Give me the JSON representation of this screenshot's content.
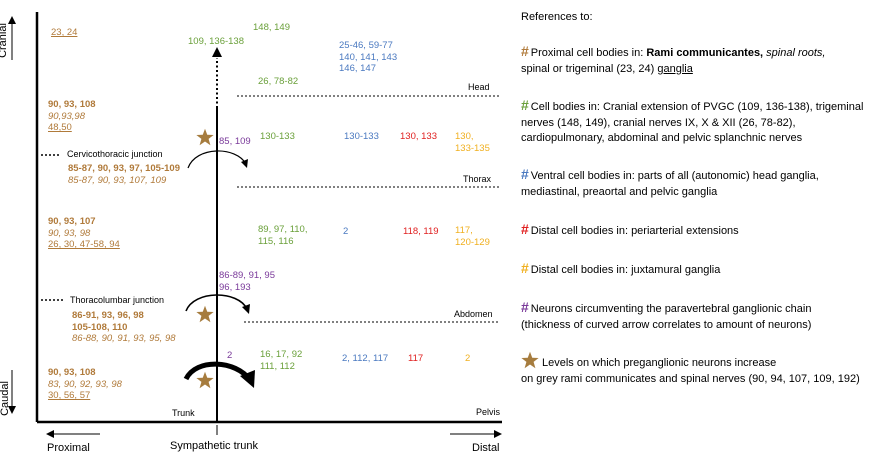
{
  "colors": {
    "brown": "#b07a3a",
    "green": "#6aa03a",
    "blue": "#4a79c0",
    "red": "#e02020",
    "yellow": "#f0b020",
    "purple": "#7a3a9a",
    "star": "#a67c3e"
  },
  "axes": {
    "cranial": "Cranial",
    "caudal": "Caudal",
    "proximal": "Proximal",
    "distal": "Distal",
    "sympathetic_trunk": "Sympathetic trunk"
  },
  "regions": {
    "head": "Head",
    "thorax": "Thorax",
    "abdomen": "Abdomen",
    "pelvis": "Pelvis",
    "trunk": "Trunk"
  },
  "junctions": {
    "cervicothoracic": "Cervicothoracic junction",
    "thoracolumbar": "Thoracolumbar junction"
  },
  "diagram": {
    "top_brown": "23, 24",
    "top_green_1": "148, 149",
    "top_green_2": "109, 136-138",
    "head_blue": [
      "25-46, 59-77",
      "140, 141, 143",
      "146, 147"
    ],
    "head_green": "26, 78-82",
    "cervical_brown": [
      "90, 93, 108",
      "90,93,98",
      "48,50"
    ],
    "cervical_purple": "85, 109",
    "cervical_green": "130-133",
    "cervical_blue": "130-133",
    "cervical_red": "130, 133",
    "cervical_yellow": [
      "130,",
      "133-135"
    ],
    "ctj_brown": [
      "85-87, 90, 93, 97, 105-109",
      "85-87, 90, 93, 107, 109"
    ],
    "thorax_brown": [
      "90, 93, 107",
      "90, 93, 98",
      "26, 30, 47-58, 94"
    ],
    "thorax_green": [
      "89, 97, 110,",
      "115, 116"
    ],
    "thorax_blue": "2",
    "thorax_red": "118, 119",
    "thorax_yellow": [
      "117,",
      "120-129"
    ],
    "tl_purple": [
      "86-89, 91, 95",
      "96, 193"
    ],
    "tlj_brown": [
      "86-91, 93, 96, 98",
      "105-108, 110",
      "86-88, 90, 91, 93, 95, 98"
    ],
    "pelvis_purple": "2",
    "pelvis_green": [
      "16, 17, 92",
      "111, 112"
    ],
    "pelvis_blue": "2, 112, 117",
    "pelvis_red": "117",
    "pelvis_yellow": "2",
    "pelvis_brown": [
      "90, 93, 108",
      "83, 90, 92, 93, 98",
      "30, 56, 57"
    ]
  },
  "references": {
    "title": "References to:",
    "hash_symbol": "#",
    "brown_pre": "Proximal cell bodies in: ",
    "brown_bold": "Rami communicantes,",
    "brown_italic": " spinal roots,",
    "brown_line2_pre": "spinal or trigeminal (23, 24) ",
    "brown_line2_u": "ganglia",
    "green_line1": "Cell bodies in: Cranial extension of PVGC (109, 136-138), trigeminal",
    "green_line2": "nerves (148, 149), cranial nerves IX, X & XII (26, 78-82),",
    "green_line3": "cardiopulmonary, abdominal and pelvic splanchnic nerves",
    "blue_line1": "Ventral cell bodies in: parts of all (autonomic) head ganglia,",
    "blue_line2": "mediastinal, preaortal and pelvic ganglia",
    "red_line1": "Distal cell bodies in: periarterial extensions",
    "yellow_line1": "Distal cell bodies in: juxtamural ganglia",
    "purple_line1": "Neurons circumventing the paravertebral ganglionic chain",
    "purple_line2": "(thickness of curved arrow correlates to amount of neurons)",
    "star_line1": "Levels on which preganglionic neurons increase",
    "star_line2": "on grey rami communicates and spinal nerves (90, 94, 107, 109, 192)"
  }
}
